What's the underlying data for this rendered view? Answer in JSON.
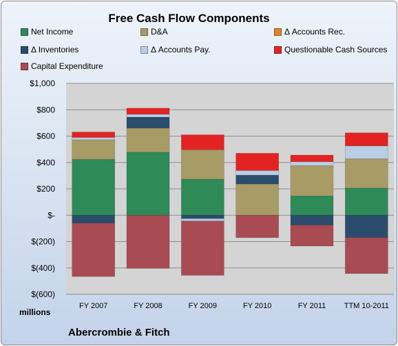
{
  "chart_data": {
    "type": "bar",
    "stacked": true,
    "title": "Free Cash Flow Components",
    "ylabel": "millions",
    "company": "Abercrombie & Fitch",
    "categories": [
      "FY 2007",
      "FY 2008",
      "FY 2009",
      "FY 2010",
      "FY 2011",
      "TTM 10-2011"
    ],
    "ylim": [
      -600,
      1000
    ],
    "yticks": [
      1000,
      800,
      600,
      400,
      200,
      0,
      -200,
      -400,
      -600
    ],
    "ytick_labels": [
      "$1,000",
      "$800",
      "$600",
      "$400",
      "$200",
      "$-",
      "$(200)",
      "$(400)",
      "$(600)"
    ],
    "grid": true,
    "legend_position": "top",
    "series": [
      {
        "name": "Net Income",
        "color": "#2e8b57",
        "values": [
          424,
          478,
          273,
          0,
          146,
          206
        ]
      },
      {
        "name": "D&A",
        "color": "#a89b66",
        "values": [
          148,
          183,
          224,
          237,
          230,
          222
        ]
      },
      {
        "name": "Δ Accounts Rec.",
        "color": "#e0852a",
        "values": [
          0,
          0,
          0,
          0,
          0,
          0
        ]
      },
      {
        "name": "Δ Inventories",
        "color": "#2c4c6e",
        "values": [
          -60,
          83,
          -26,
          67,
          -75,
          -170
        ]
      },
      {
        "name": "Δ Accounts Pay.",
        "color": "#b9cde4",
        "values": [
          18,
          22,
          -18,
          35,
          30,
          98
        ]
      },
      {
        "name": "Questionable Cash Sources",
        "color": "#e32222",
        "values": [
          41,
          46,
          113,
          131,
          50,
          99
        ]
      },
      {
        "name": "Capital Expenditure",
        "color": "#a84b52",
        "values": [
          -405,
          -403,
          -412,
          -170,
          -159,
          -273
        ]
      }
    ]
  }
}
